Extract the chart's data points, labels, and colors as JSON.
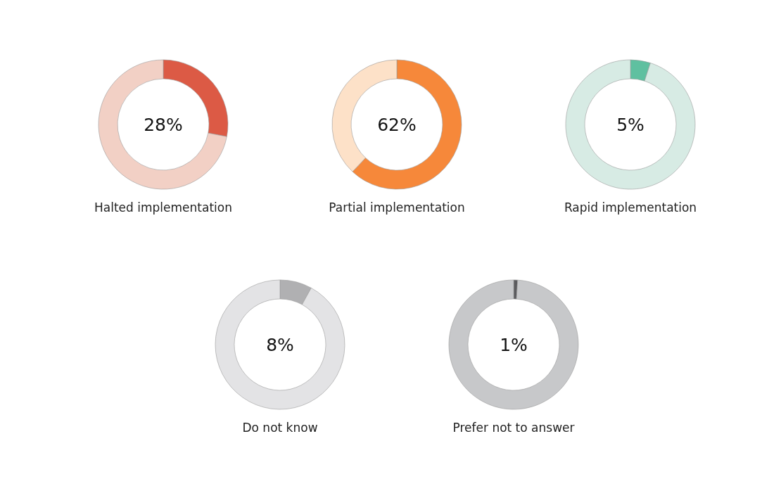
{
  "chart_data": [
    {
      "type": "donut",
      "title": "Halted implementation",
      "categories": [
        null,
        null
      ],
      "values": [
        28,
        72
      ],
      "colors": [
        "#dc5a45",
        "#f2d0c5"
      ],
      "annotations": [
        "28%"
      ]
    },
    {
      "type": "donut",
      "title": "Partial implementation",
      "categories": [
        null,
        null
      ],
      "values": [
        62,
        38
      ],
      "colors": [
        "#f6883a",
        "#fde1c8"
      ],
      "annotations": [
        "62%"
      ]
    },
    {
      "type": "donut",
      "title": "Rapid implementation",
      "categories": [
        null,
        null
      ],
      "values": [
        5,
        95
      ],
      "colors": [
        "#5fc0a0",
        "#d7ebe4"
      ],
      "annotations": [
        "5%"
      ]
    },
    {
      "type": "donut",
      "title": "Do not know",
      "categories": [
        null,
        null
      ],
      "values": [
        8,
        92
      ],
      "colors": [
        "#b0b0b2",
        "#e3e3e5"
      ],
      "annotations": [
        "8%"
      ]
    },
    {
      "type": "donut",
      "title": "Prefer not to answer",
      "categories": [
        null,
        null
      ],
      "values": [
        1,
        99
      ],
      "colors": [
        "#5b5b5e",
        "#c7c8ca"
      ],
      "annotations": [
        "1%"
      ]
    }
  ]
}
